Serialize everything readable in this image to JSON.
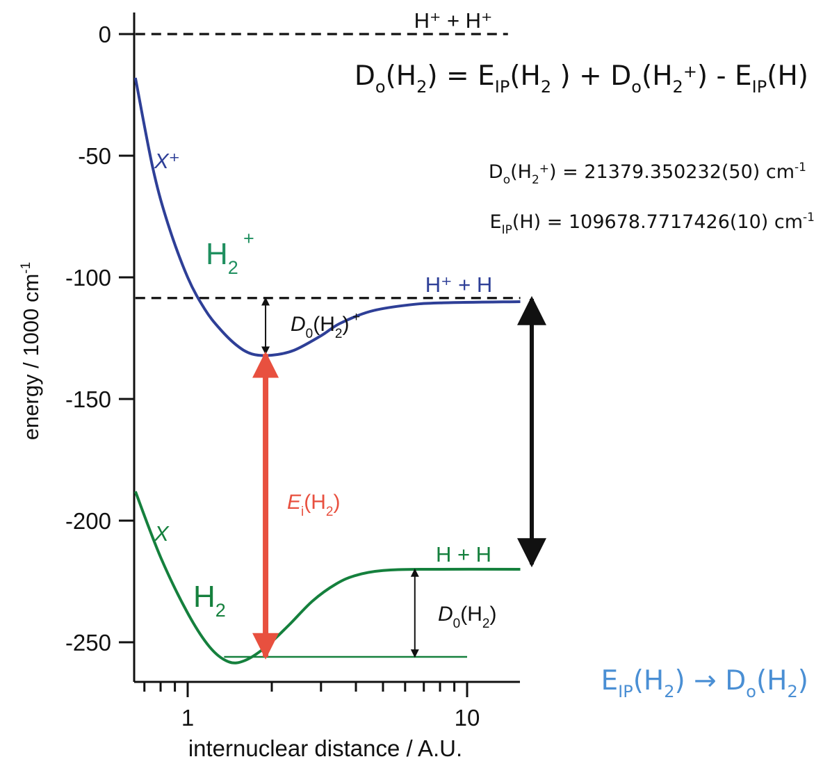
{
  "axes": {
    "ylabel": "energy / 1000 cm",
    "ylabel_sup": "-1",
    "xlabel": "internuclear distance / A.U.",
    "y_ticks": [
      "0",
      "-50",
      "-100",
      "-150",
      "-200",
      "-250"
    ],
    "x_ticks": [
      "1",
      "10"
    ],
    "x_scale": "log",
    "x_range": [
      0.65,
      15.5
    ],
    "y_range": [
      -270,
      8
    ]
  },
  "curves": [
    {
      "key": "h2_plus",
      "color": "#2e3f97",
      "points": [
        [
          0.65,
          -18
        ],
        [
          0.75,
          -55
        ],
        [
          0.85,
          -78
        ],
        [
          1.0,
          -100
        ],
        [
          1.15,
          -113
        ],
        [
          1.3,
          -121
        ],
        [
          1.5,
          -128
        ],
        [
          1.7,
          -131.5
        ],
        [
          2.0,
          -132
        ],
        [
          2.4,
          -130
        ],
        [
          3.0,
          -124
        ],
        [
          3.5,
          -119
        ],
        [
          4.5,
          -114
        ],
        [
          6.0,
          -111.5
        ],
        [
          8.0,
          -110.5
        ],
        [
          15.5,
          -110
        ]
      ]
    },
    {
      "key": "h2",
      "color": "#15803d",
      "points": [
        [
          0.65,
          -188
        ],
        [
          0.8,
          -215
        ],
        [
          1.0,
          -238
        ],
        [
          1.2,
          -252
        ],
        [
          1.4,
          -258
        ],
        [
          1.6,
          -257.5
        ],
        [
          1.9,
          -252
        ],
        [
          2.3,
          -243
        ],
        [
          2.8,
          -233
        ],
        [
          3.4,
          -226
        ],
        [
          4.0,
          -222.5
        ],
        [
          5.0,
          -220.5
        ],
        [
          7.0,
          -220
        ],
        [
          15.5,
          -220
        ]
      ]
    }
  ],
  "dashed_levels": [
    {
      "key": "ion_pair",
      "y": 0,
      "x_from": 0.65,
      "x_to": 14
    },
    {
      "key": "ion_atom",
      "y": -108.5,
      "x_from": 0.65,
      "x_to": 15.5
    }
  ],
  "baseline_h2": {
    "y": -256,
    "x_from": 1.35,
    "x_to": 10
  },
  "arrows": [
    {
      "key": "d0_h2plus",
      "x": 1.9,
      "y1": -108.5,
      "y2": -131.5,
      "color": "#111111"
    },
    {
      "key": "ei_h2",
      "x": 1.9,
      "y1": -131.5,
      "y2": -256,
      "color": "#e8503f"
    },
    {
      "key": "d0_h2",
      "x": 6.5,
      "y1": -220,
      "y2": -256,
      "color": "#111111"
    },
    {
      "key": "black_big",
      "x": 15.2,
      "y1": -110,
      "y2": -220,
      "color": "#111111"
    }
  ],
  "labels": {
    "hplus_hplus": "H⁺ + H⁺",
    "hplus_h": "H⁺ + H",
    "h_h": "H + H",
    "x_plus": "X⁺",
    "x": "X",
    "h2plus_label_main": "H",
    "h2plus_label_sub": "2",
    "h2plus_label_sup": "+",
    "h2_label_main": "H",
    "h2_label_sub": "2",
    "d0_main": "D",
    "d0_sub": "0",
    "ei_main": "E",
    "ei_sub": "i",
    "ei_h2_paren": "(H",
    "ei_h2_sub": "2",
    "ei_h2_close": ")",
    "d0_h2_paren": "(H",
    "d0_h2_sub": "2",
    "d0_h2_close": ")",
    "d0_h2plus_paren": "(H",
    "d0_h2plus_sub": "2",
    "d0_h2plus_sup": "+",
    "d0_h2plus_close": ")"
  },
  "equation": {
    "D": "D",
    "o": "o",
    "H": "H",
    "two": "2",
    "plus": "+",
    "eq": " = ",
    "E": "E",
    "IP": "IP",
    "minus": " - ",
    "lp": "(",
    "rp": ")",
    "sp_plus": " + ",
    "space_rp": " )"
  },
  "constants": [
    {
      "prefix": "D",
      "sub": "o",
      "mid": "(H",
      "sub2": "2",
      "sup": "+",
      "value": ") = 21379.350232(50) cm",
      "unit_sup": "-1"
    },
    {
      "prefix": "E",
      "sub": "IP",
      "mid": "(H",
      "sub2": "",
      "sup": "",
      "value": ") = 109678.7717426(10) cm",
      "unit_sup": "-1"
    }
  ],
  "conclusion": {
    "E": "E",
    "IP": "IP",
    "open": "(H",
    "two": "2",
    "close": ")",
    "arrow": " → ",
    "D": "D",
    "o": "o",
    "color": "#4a8fd4"
  }
}
